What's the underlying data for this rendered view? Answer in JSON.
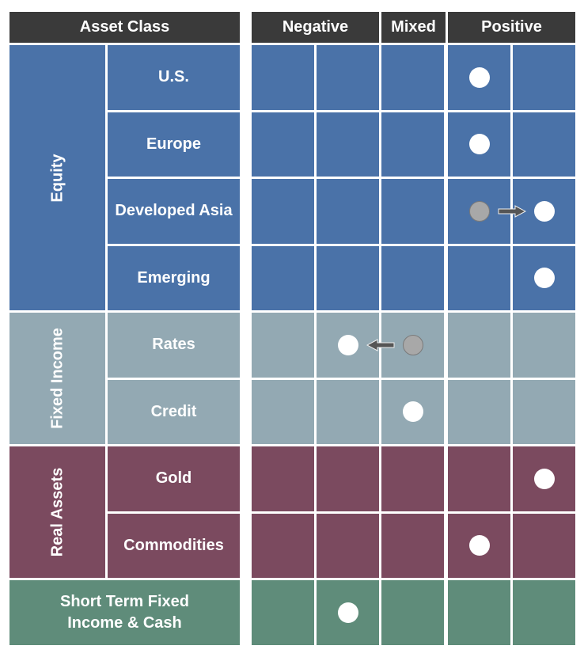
{
  "header": {
    "asset_class": "Asset Class",
    "negative": "Negative",
    "mixed": "Mixed",
    "positive": "Positive"
  },
  "colors": {
    "header": "#3a3a3a",
    "Equity": "#4a72a8",
    "Fixed Income": "#93a9b3",
    "Real Assets": "#7b4a5f",
    "Cash": "#5f8c7a"
  },
  "groups": [
    {
      "name": "Equity",
      "color_key": "Equity",
      "rows": [
        "U.S.",
        "Europe",
        "Developed Asia",
        "Emerging"
      ]
    },
    {
      "name": "Fixed Income",
      "color_key": "Fixed Income",
      "rows": [
        "Rates",
        "Credit"
      ]
    },
    {
      "name": "Real Assets",
      "color_key": "Real Assets",
      "rows": [
        "Gold",
        "Commodities"
      ]
    }
  ],
  "cash_row": {
    "label": "Short Term Fixed Income & Cash",
    "color_key": "Cash"
  },
  "positions": [
    {
      "row": "U.S.",
      "column": 4
    },
    {
      "row": "Europe",
      "column": 4
    },
    {
      "row": "Developed Asia",
      "column": 5,
      "previous_column": 4,
      "arrow_icon": "arrow-right-icon"
    },
    {
      "row": "Emerging",
      "column": 5
    },
    {
      "row": "Rates",
      "column": 2,
      "previous_column": 3,
      "arrow_icon": "arrow-left-icon"
    },
    {
      "row": "Credit",
      "column": 3
    },
    {
      "row": "Gold",
      "column": 5
    },
    {
      "row": "Commodities",
      "column": 4
    },
    {
      "row": "Short Term Fixed Income & Cash",
      "column": 2
    }
  ]
}
